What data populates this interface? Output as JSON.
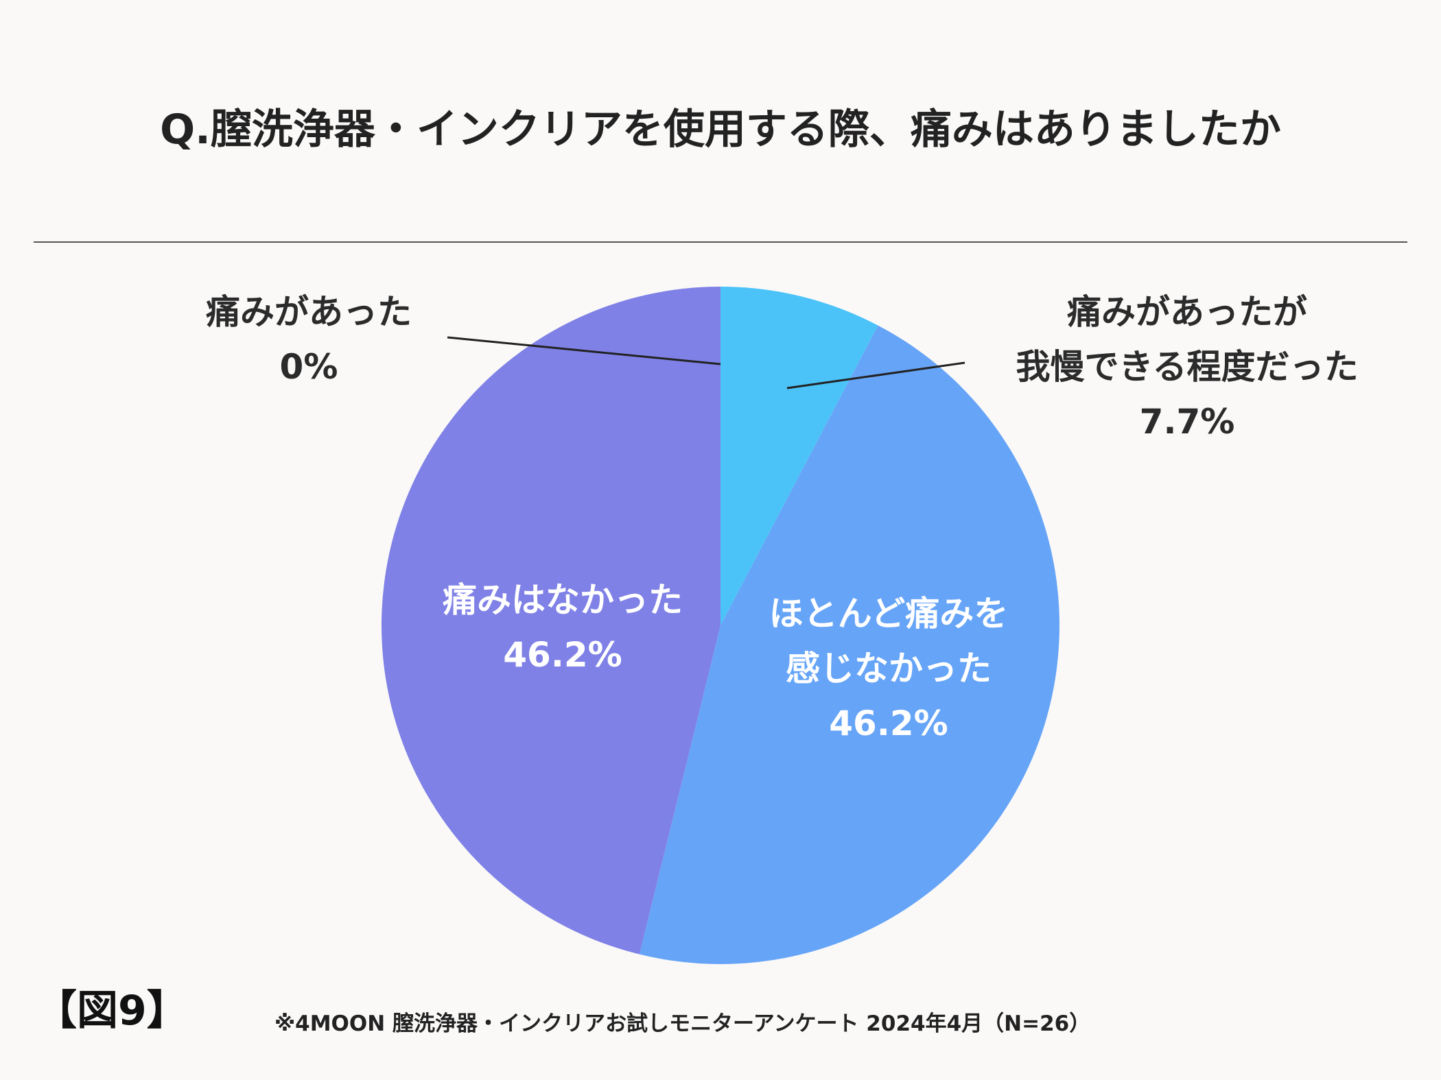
{
  "chart_data": {
    "type": "pie",
    "title": "Q.膣洗浄器・インクリアを使用する際、痛みはありましたか",
    "slices": [
      {
        "name": "痛みがあった",
        "value": 0,
        "value_label": "0%",
        "color": "#5b8def"
      },
      {
        "name": "痛みがあったが我慢できる程度だった",
        "value": 7.7,
        "value_label": "7.7%",
        "color": "#4cc3f8"
      },
      {
        "name": "ほとんど痛みを感じなかった",
        "value": 46.2,
        "value_label": "46.2%",
        "color": "#66a4f7"
      },
      {
        "name": "痛みはなかった",
        "value": 46.2,
        "value_label": "46.2%",
        "color": "#7f81e6"
      }
    ],
    "start_angle": "12 o'clock, clockwise"
  },
  "labels": {
    "s0": {
      "line1": "痛みがあった",
      "value": "0%"
    },
    "s1": {
      "line1": "痛みがあったが",
      "line2": "我慢できる程度だった",
      "value": "7.7%"
    },
    "s2": {
      "line1": "ほとんど痛みを",
      "line2": "感じなかった",
      "value": "46.2%"
    },
    "s3": {
      "line1": "痛みはなかった",
      "value": "46.2%"
    }
  },
  "figure_label": "【図9】",
  "source_note": "※4MOON 膣洗浄器・インクリアお試しモニターアンケート 2024年4月（N=26）"
}
